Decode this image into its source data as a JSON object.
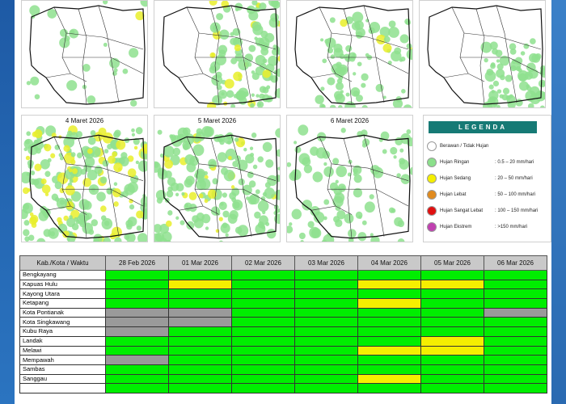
{
  "maps": [
    {
      "id": "map-1",
      "title": ""
    },
    {
      "id": "map-2",
      "title": ""
    },
    {
      "id": "map-3",
      "title": ""
    },
    {
      "id": "map-4",
      "title": ""
    },
    {
      "id": "map-5",
      "title": "4 Maret 2026"
    },
    {
      "id": "map-6",
      "title": "5 Maret 2026"
    },
    {
      "id": "map-7",
      "title": "6 Maret 2026"
    }
  ],
  "legend": {
    "title": "LEGENDA",
    "items": [
      {
        "name": "Berawan / Tidak Hujan",
        "range": "",
        "color": "#ffffff"
      },
      {
        "name": "Hujan Ringan",
        "range": ": 0.5 – 20 mm/hari",
        "color": "#8be08b"
      },
      {
        "name": "Hujan Sedang",
        "range": ": 20 – 50 mm/hari",
        "color": "#f5ef00"
      },
      {
        "name": "Hujan Lebat",
        "range": ": 50 – 100 mm/hari",
        "color": "#e08a1e"
      },
      {
        "name": "Hujan Sangat Lebat",
        "range": ": 100 – 150 mm/hari",
        "color": "#e01010"
      },
      {
        "name": "Hujan Ekstrem",
        "range": ": >150 mm/hari",
        "color": "#c040b0"
      }
    ]
  },
  "table": {
    "headers": [
      "Kab./Kota / Waktu",
      "28 Feb 2026",
      "01 Mar 2026",
      "02 Mar 2026",
      "03 Mar 2026",
      "04 Mar 2026",
      "05 Mar 2026",
      "06 Mar 2026"
    ],
    "rows": [
      {
        "name": "Bengkayang",
        "cells": [
          "g",
          "g",
          "g",
          "g",
          "g",
          "g",
          "g"
        ]
      },
      {
        "name": "Kapuas Hulu",
        "cells": [
          "g",
          "y",
          "g",
          "g",
          "y",
          "y",
          "g"
        ]
      },
      {
        "name": "Kayong Utara",
        "cells": [
          "g",
          "g",
          "g",
          "g",
          "g",
          "g",
          "g"
        ]
      },
      {
        "name": "Ketapang",
        "cells": [
          "g",
          "g",
          "g",
          "g",
          "y",
          "g",
          "g"
        ]
      },
      {
        "name": "Kota Pontianak",
        "cells": [
          "x",
          "x",
          "g",
          "g",
          "g",
          "g",
          "x"
        ]
      },
      {
        "name": "Kota Singkawang",
        "cells": [
          "x",
          "x",
          "g",
          "g",
          "g",
          "g",
          "g"
        ]
      },
      {
        "name": "Kubu Raya",
        "cells": [
          "x",
          "g",
          "g",
          "g",
          "g",
          "g",
          "g"
        ]
      },
      {
        "name": "Landak",
        "cells": [
          "g",
          "g",
          "g",
          "g",
          "g",
          "y",
          "g"
        ]
      },
      {
        "name": "Melawi",
        "cells": [
          "g",
          "g",
          "g",
          "g",
          "y",
          "y",
          "g"
        ]
      },
      {
        "name": "Mempawah",
        "cells": [
          "x",
          "g",
          "g",
          "g",
          "g",
          "g",
          "g"
        ]
      },
      {
        "name": "Sambas",
        "cells": [
          "g",
          "g",
          "g",
          "g",
          "g",
          "g",
          "g"
        ]
      },
      {
        "name": "Sanggau",
        "cells": [
          "g",
          "g",
          "g",
          "g",
          "y",
          "g",
          "g"
        ]
      },
      {
        "name": "",
        "cells": [
          "g",
          "g",
          "g",
          "g",
          "g",
          "g",
          "g"
        ]
      }
    ]
  },
  "colors": {
    "green": "#00ee00",
    "yellow": "#f5ef00",
    "gray": "#9a9a9a"
  }
}
